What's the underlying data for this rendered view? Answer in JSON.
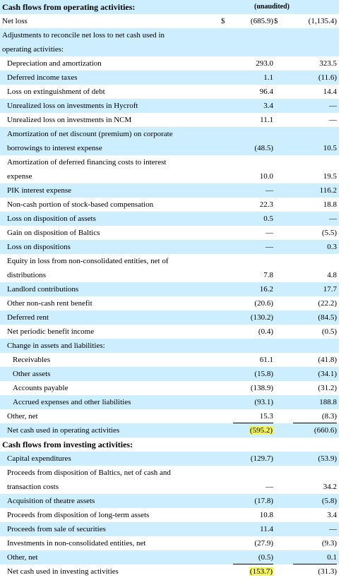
{
  "header": {
    "title": "Cash flows from operating activities:",
    "unaudited": "(unaudited)"
  },
  "operating": {
    "net_loss": {
      "label": "Net loss",
      "currency": "$",
      "v1": "(685.9)",
      "currency2": "$",
      "v2": "(1,135.4)"
    },
    "adjustments_line1": "Adjustments to reconcile net loss to net cash used in",
    "adjustments_line2": "operating activities:",
    "items": [
      {
        "label": "Depreciation and amortization",
        "v1": "293.0",
        "v2": "323.5"
      },
      {
        "label": "Deferred income taxes",
        "v1": "1.1",
        "v2": "(11.6)"
      },
      {
        "label": "Loss on extinguishment of debt",
        "v1": "96.4",
        "v2": "14.4"
      },
      {
        "label": "Unrealized loss on investments in Hycroft",
        "v1": "3.4",
        "v2": "—"
      },
      {
        "label": "Unrealized loss on investments in NCM",
        "v1": "11.1",
        "v2": "—"
      },
      {
        "line1": "Amortization of net discount (premium) on corporate",
        "line2": "borrowings to interest expense",
        "v1": "(48.5)",
        "v2": "10.5"
      },
      {
        "line1": "Amortization of deferred financing costs to interest",
        "line2": "expense",
        "v1": "10.0",
        "v2": "19.5"
      },
      {
        "label": "PIK interest expense",
        "v1": "—",
        "v2": "116.2"
      },
      {
        "label": "Non-cash portion of stock-based compensation",
        "v1": "22.3",
        "v2": "18.8"
      },
      {
        "label": "Loss on disposition of assets",
        "v1": "0.5",
        "v2": "—"
      },
      {
        "label": "Gain on disposition of Baltics",
        "v1": "—",
        "v2": "(5.5)"
      },
      {
        "label": "Loss on dispositions",
        "v1": "—",
        "v2": "0.3"
      },
      {
        "line1": "Equity in loss from non-consolidated entities, net of",
        "line2": "distributions",
        "v1": "7.8",
        "v2": "4.8"
      },
      {
        "label": "Landlord contributions",
        "v1": "16.2",
        "v2": "17.7"
      },
      {
        "label": "Other non-cash rent benefit",
        "v1": "(20.6)",
        "v2": "(22.2)"
      },
      {
        "label": "Deferred rent",
        "v1": "(130.2)",
        "v2": "(84.5)"
      },
      {
        "label": "Net periodic benefit income",
        "v1": "(0.4)",
        "v2": "(0.5)"
      }
    ],
    "change_heading": "Change in assets and liabilities:",
    "changes": [
      {
        "label": "Receivables",
        "v1": "61.1",
        "v2": "(41.8)"
      },
      {
        "label": "Other assets",
        "v1": "(15.8)",
        "v2": "(34.1)"
      },
      {
        "label": "Accounts payable",
        "v1": "(138.9)",
        "v2": "(31.2)"
      },
      {
        "label": "Accrued expenses and other liabilities",
        "v1": "(93.1)",
        "v2": "188.8"
      }
    ],
    "other_net": {
      "label": "Other, net",
      "v1": "15.3",
      "v2": "(8.3)"
    },
    "total": {
      "label": "Net cash used in operating activities",
      "v1": "(595.2)",
      "v2": "(660.6)"
    }
  },
  "investing": {
    "title": "Cash flows from investing activities:",
    "items": [
      {
        "label": "Capital expenditures",
        "v1": "(129.7)",
        "v2": "(53.9)"
      },
      {
        "line1": "Proceeds from disposition of Baltics, net of cash and",
        "line2": "transaction costs",
        "v1": "—",
        "v2": "34.2"
      },
      {
        "label": "Acquisition of theatre assets",
        "v1": "(17.8)",
        "v2": "(5.8)"
      },
      {
        "label": "Proceeds from disposition of long-term assets",
        "v1": "10.8",
        "v2": "3.4"
      },
      {
        "label": "Proceeds from sale of securities",
        "v1": "11.4",
        "v2": "—"
      },
      {
        "label": "Investments in non-consolidated entities, net",
        "v1": "(27.9)",
        "v2": "(9.3)"
      },
      {
        "label": "Other, net",
        "v1": "(0.5)",
        "v2": "0.1"
      }
    ],
    "total": {
      "label": "Net cash used in investing activities",
      "v1": "(153.7)",
      "v2": "(31.3)"
    }
  }
}
